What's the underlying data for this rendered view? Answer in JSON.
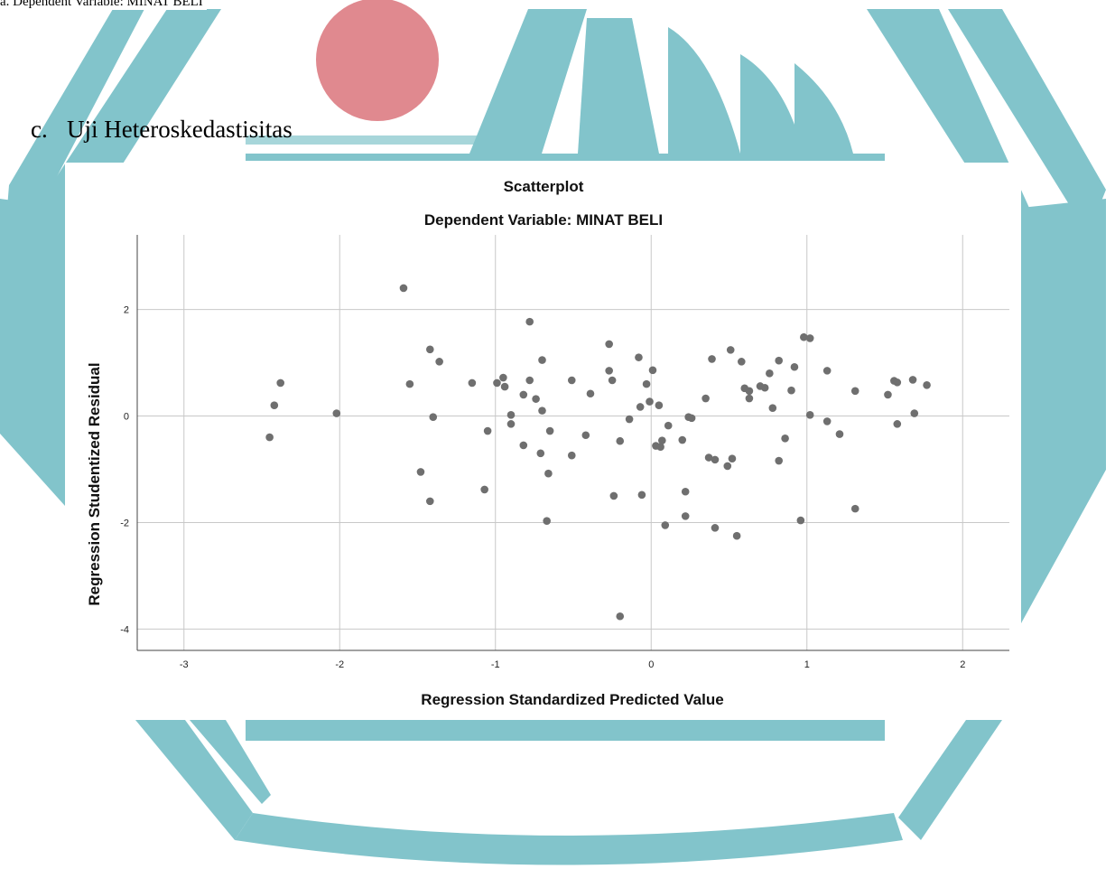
{
  "top_note": "a. Dependent Variable: MINAT BELI",
  "section": {
    "number": "c.",
    "title": "Uji Heteroskedastisitas"
  },
  "colors": {
    "watermark_teal": "#82c4cb",
    "watermark_circle": "#e0898f",
    "points": "#6f6f6f",
    "grid": "#c8c8c8"
  },
  "chart_data": {
    "type": "scatter",
    "title": "Scatterplot",
    "subtitle": "Dependent Variable: MINAT BELI",
    "xlabel": "Regression Standardized Predicted Value",
    "ylabel": "Regression Studentized Residual",
    "xlim": [
      -3.3,
      2.3
    ],
    "ylim": [
      -4.4,
      3.4
    ],
    "xticks": [
      -3,
      -2,
      -1,
      0,
      1,
      2
    ],
    "yticks": [
      -4,
      -2,
      0,
      2
    ],
    "grid": true,
    "points": [
      [
        -2.45,
        -0.4
      ],
      [
        -2.42,
        0.2
      ],
      [
        -2.38,
        0.62
      ],
      [
        -2.02,
        0.05
      ],
      [
        -1.59,
        2.4
      ],
      [
        -1.55,
        0.6
      ],
      [
        -1.48,
        -1.05
      ],
      [
        -1.42,
        1.25
      ],
      [
        -1.42,
        -1.6
      ],
      [
        -1.4,
        -0.02
      ],
      [
        -1.36,
        1.02
      ],
      [
        -1.15,
        0.62
      ],
      [
        -1.07,
        -1.38
      ],
      [
        -1.05,
        -0.28
      ],
      [
        -0.99,
        0.62
      ],
      [
        -0.95,
        0.72
      ],
      [
        -0.94,
        0.55
      ],
      [
        -0.9,
        0.02
      ],
      [
        -0.9,
        -0.15
      ],
      [
        -0.82,
        0.4
      ],
      [
        -0.82,
        -0.55
      ],
      [
        -0.78,
        1.77
      ],
      [
        -0.78,
        0.67
      ],
      [
        -0.74,
        0.32
      ],
      [
        -0.71,
        -0.7
      ],
      [
        -0.7,
        1.05
      ],
      [
        -0.7,
        0.1
      ],
      [
        -0.66,
        -1.08
      ],
      [
        -0.65,
        -0.28
      ],
      [
        -0.67,
        -1.97
      ],
      [
        -0.51,
        0.67
      ],
      [
        -0.51,
        -0.74
      ],
      [
        -0.42,
        -0.36
      ],
      [
        -0.39,
        0.42
      ],
      [
        -0.27,
        1.35
      ],
      [
        -0.27,
        0.85
      ],
      [
        -0.25,
        0.67
      ],
      [
        -0.24,
        -1.5
      ],
      [
        -0.2,
        -0.47
      ],
      [
        -0.2,
        -3.76
      ],
      [
        -0.14,
        -0.06
      ],
      [
        -0.08,
        1.1
      ],
      [
        -0.07,
        0.17
      ],
      [
        -0.06,
        -1.48
      ],
      [
        -0.03,
        0.6
      ],
      [
        -0.01,
        0.27
      ],
      [
        0.01,
        0.86
      ],
      [
        0.03,
        -0.56
      ],
      [
        0.05,
        0.2
      ],
      [
        0.06,
        -0.58
      ],
      [
        0.07,
        -0.46
      ],
      [
        0.09,
        -2.05
      ],
      [
        0.11,
        -0.18
      ],
      [
        0.2,
        -0.45
      ],
      [
        0.22,
        -1.88
      ],
      [
        0.22,
        -1.42
      ],
      [
        0.24,
        -0.02
      ],
      [
        0.26,
        -0.04
      ],
      [
        0.35,
        0.33
      ],
      [
        0.37,
        -0.78
      ],
      [
        0.39,
        1.07
      ],
      [
        0.41,
        -0.82
      ],
      [
        0.41,
        -2.1
      ],
      [
        0.49,
        -0.94
      ],
      [
        0.51,
        1.24
      ],
      [
        0.52,
        -0.8
      ],
      [
        0.55,
        -2.25
      ],
      [
        0.58,
        1.02
      ],
      [
        0.6,
        0.52
      ],
      [
        0.63,
        0.47
      ],
      [
        0.63,
        0.33
      ],
      [
        0.7,
        0.56
      ],
      [
        0.73,
        0.53
      ],
      [
        0.76,
        0.8
      ],
      [
        0.78,
        0.15
      ],
      [
        0.82,
        1.04
      ],
      [
        0.82,
        -0.84
      ],
      [
        0.86,
        -0.42
      ],
      [
        0.9,
        0.48
      ],
      [
        0.92,
        0.92
      ],
      [
        0.96,
        -1.96
      ],
      [
        0.98,
        1.48
      ],
      [
        1.02,
        1.46
      ],
      [
        1.02,
        0.02
      ],
      [
        1.13,
        0.85
      ],
      [
        1.13,
        -0.1
      ],
      [
        1.21,
        -0.34
      ],
      [
        1.31,
        0.47
      ],
      [
        1.31,
        -1.74
      ],
      [
        1.52,
        0.4
      ],
      [
        1.56,
        0.66
      ],
      [
        1.58,
        0.63
      ],
      [
        1.58,
        -0.15
      ],
      [
        1.68,
        0.68
      ],
      [
        1.69,
        0.05
      ],
      [
        1.77,
        0.58
      ]
    ]
  }
}
